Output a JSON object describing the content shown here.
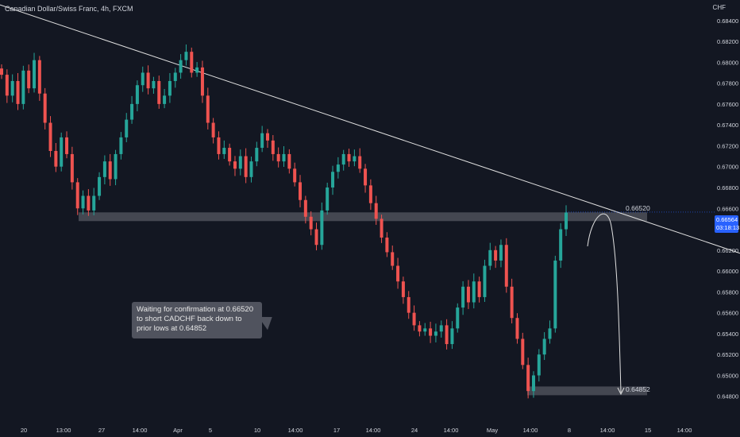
{
  "header": {
    "title": "Canadian Dollar/Swiss Franc, 4h, FXCM",
    "currency": "CHF"
  },
  "annotations": {
    "note_text": "Waiting for confirmation at 0.66520 to short CADCHF back down to prior lows at 0.64852",
    "resistance_label": "0.66520",
    "support_label": "0.64852"
  },
  "price_tag": {
    "price": "0.66564",
    "countdown": "03:18:13"
  },
  "colors": {
    "background": "#131722",
    "up": "#26a69a",
    "down": "#ef5350",
    "zone": "#4a4d57",
    "trendline": "#e0e0e0",
    "tag": "#2962ff"
  },
  "chart_data": {
    "type": "candlestick",
    "symbol": "CADCHF",
    "timeframe": "4h",
    "ylim": [
      0.6476,
      0.6852
    ],
    "y_ticks": [
      "0.68400",
      "0.68200",
      "0.68000",
      "0.67800",
      "0.67600",
      "0.67400",
      "0.67200",
      "0.67000",
      "0.66800",
      "0.66600",
      "0.66400",
      "0.66200",
      "0.66000",
      "0.65800",
      "0.65600",
      "0.65400",
      "0.65200",
      "0.65000",
      "0.64800"
    ],
    "x_ticks": [
      "20",
      "13:00",
      "27",
      "14:00",
      "Apr",
      "5",
      "10",
      "14:00",
      "17",
      "14:00",
      "24",
      "14:00",
      "May",
      "14:00",
      "8",
      "14:00",
      "15",
      "14:00"
    ],
    "path": [
      0.6788,
      0.6768,
      0.6782,
      0.676,
      0.6792,
      0.6775,
      0.6802,
      0.677,
      0.6742,
      0.6715,
      0.67,
      0.6728,
      0.6712,
      0.6685,
      0.666,
      0.6672,
      0.6658,
      0.6672,
      0.669,
      0.6705,
      0.6688,
      0.6712,
      0.6728,
      0.6745,
      0.676,
      0.6778,
      0.679,
      0.6775,
      0.6782,
      0.676,
      0.6768,
      0.6782,
      0.679,
      0.6802,
      0.681,
      0.679,
      0.6795,
      0.6768,
      0.6742,
      0.6728,
      0.6712,
      0.6718,
      0.6705,
      0.6698,
      0.671,
      0.669,
      0.6705,
      0.6718,
      0.6732,
      0.6725,
      0.6712,
      0.6705,
      0.6712,
      0.6698,
      0.6685,
      0.6668,
      0.6652,
      0.664,
      0.6625,
      0.6658,
      0.668,
      0.6695,
      0.6702,
      0.6712,
      0.6705,
      0.671,
      0.6698,
      0.6682,
      0.6665,
      0.665,
      0.6632,
      0.6618,
      0.6605,
      0.659,
      0.6575,
      0.656,
      0.6548,
      0.6542,
      0.6545,
      0.6538,
      0.6542,
      0.6548,
      0.653,
      0.6545,
      0.6565,
      0.6585,
      0.657,
      0.659,
      0.6575,
      0.6605,
      0.662,
      0.661,
      0.6625,
      0.6585,
      0.6555,
      0.6535,
      0.651,
      0.6485,
      0.65,
      0.652,
      0.6535,
      0.6545,
      0.661,
      0.664,
      0.6656
    ],
    "resistance_zone": 0.6652,
    "support_zone": 0.64852,
    "current_price": 0.66564,
    "trendline": {
      "start_price": 0.6855,
      "end_price": 0.6617
    }
  }
}
